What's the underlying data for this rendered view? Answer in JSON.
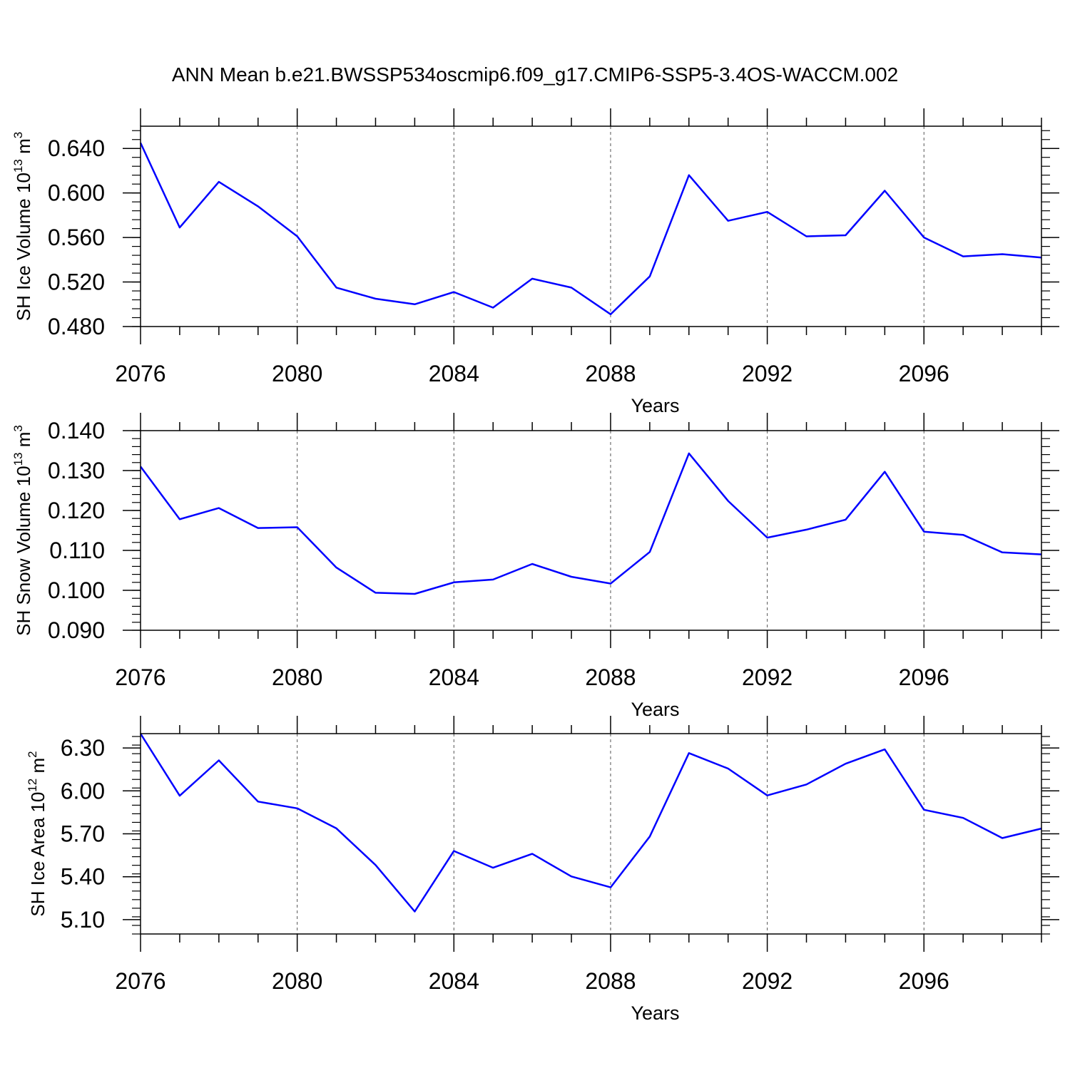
{
  "figure": {
    "title": "ANN Mean b.e21.BWSSP534oscmip6.f09_g17.CMIP6-SSP5-3.4OS-WACCM.002",
    "line_color": "#0000ff"
  },
  "chart_data": [
    {
      "type": "line",
      "title": "",
      "xlabel": "Years",
      "ylabel": {
        "base": "SH Ice Volume 10",
        "exp": "13",
        "unit": " m",
        "unit_exp": "3"
      },
      "xlim": [
        2076,
        2099
      ],
      "ylim": [
        0.48,
        0.66
      ],
      "xticks": [
        2076,
        2080,
        2084,
        2088,
        2092,
        2096
      ],
      "yticks": [
        "0.480",
        "0.520",
        "0.560",
        "0.600",
        "0.640"
      ],
      "ytick_values": [
        0.48,
        0.52,
        0.56,
        0.6,
        0.64
      ],
      "y_minor_step": 0.008,
      "grid": "vertical dashed at major x ticks",
      "series": [
        {
          "x": [
            2076,
            2077,
            2078,
            2079,
            2080,
            2081,
            2082,
            2083,
            2084,
            2085,
            2086,
            2087,
            2088,
            2089,
            2090,
            2091,
            2092,
            2093,
            2094,
            2095,
            2096,
            2097,
            2098,
            2099
          ],
          "values": [
            0.645,
            0.569,
            0.61,
            0.588,
            0.561,
            0.515,
            0.505,
            0.5,
            0.511,
            0.497,
            0.523,
            0.515,
            0.491,
            0.525,
            0.616,
            0.575,
            0.583,
            0.561,
            0.562,
            0.602,
            0.56,
            0.543,
            0.545,
            0.542
          ]
        }
      ]
    },
    {
      "type": "line",
      "title": "",
      "xlabel": "Years",
      "ylabel": {
        "base": "SH Snow Volume 10",
        "exp": "13",
        "unit": " m",
        "unit_exp": "3"
      },
      "xlim": [
        2076,
        2099
      ],
      "ylim": [
        0.09,
        0.14
      ],
      "xticks": [
        2076,
        2080,
        2084,
        2088,
        2092,
        2096
      ],
      "yticks": [
        "0.090",
        "0.100",
        "0.110",
        "0.120",
        "0.130",
        "0.140"
      ],
      "ytick_values": [
        0.09,
        0.1,
        0.11,
        0.12,
        0.13,
        0.14
      ],
      "y_minor_step": 0.002,
      "grid": "vertical dashed at major x ticks",
      "series": [
        {
          "x": [
            2076,
            2077,
            2078,
            2079,
            2080,
            2081,
            2082,
            2083,
            2084,
            2085,
            2086,
            2087,
            2088,
            2089,
            2090,
            2091,
            2092,
            2093,
            2094,
            2095,
            2096,
            2097,
            2098,
            2099
          ],
          "values": [
            0.131,
            0.1178,
            0.1206,
            0.1156,
            0.1158,
            0.1057,
            0.0994,
            0.0991,
            0.102,
            0.1027,
            0.1066,
            0.1034,
            0.1017,
            0.1096,
            0.1343,
            0.1224,
            0.1132,
            0.1152,
            0.1177,
            0.1297,
            0.1147,
            0.1139,
            0.1095,
            0.109
          ]
        }
      ]
    },
    {
      "type": "line",
      "title": "",
      "xlabel": "Years",
      "ylabel": {
        "base": "SH Ice Area 10",
        "exp": "12",
        "unit": " m",
        "unit_exp": "2"
      },
      "xlim": [
        2076,
        2099
      ],
      "ylim": [
        5.0,
        6.4
      ],
      "xticks": [
        2076,
        2080,
        2084,
        2088,
        2092,
        2096
      ],
      "yticks": [
        "5.10",
        "5.40",
        "5.70",
        "6.00",
        "6.30"
      ],
      "ytick_values": [
        5.1,
        5.4,
        5.7,
        6.0,
        6.3
      ],
      "y_minor_step": 0.06,
      "grid": "vertical dashed at major x ticks",
      "series": [
        {
          "x": [
            2076,
            2077,
            2078,
            2079,
            2080,
            2081,
            2082,
            2083,
            2084,
            2085,
            2086,
            2087,
            2088,
            2089,
            2090,
            2091,
            2092,
            2093,
            2094,
            2095,
            2096,
            2097,
            2098,
            2099
          ],
          "values": [
            6.4,
            5.966,
            6.213,
            5.925,
            5.878,
            5.738,
            5.482,
            5.157,
            5.58,
            5.463,
            5.56,
            5.402,
            5.326,
            5.681,
            6.264,
            6.156,
            5.968,
            6.045,
            6.19,
            6.29,
            5.868,
            5.811,
            5.67,
            5.737
          ]
        }
      ]
    }
  ]
}
